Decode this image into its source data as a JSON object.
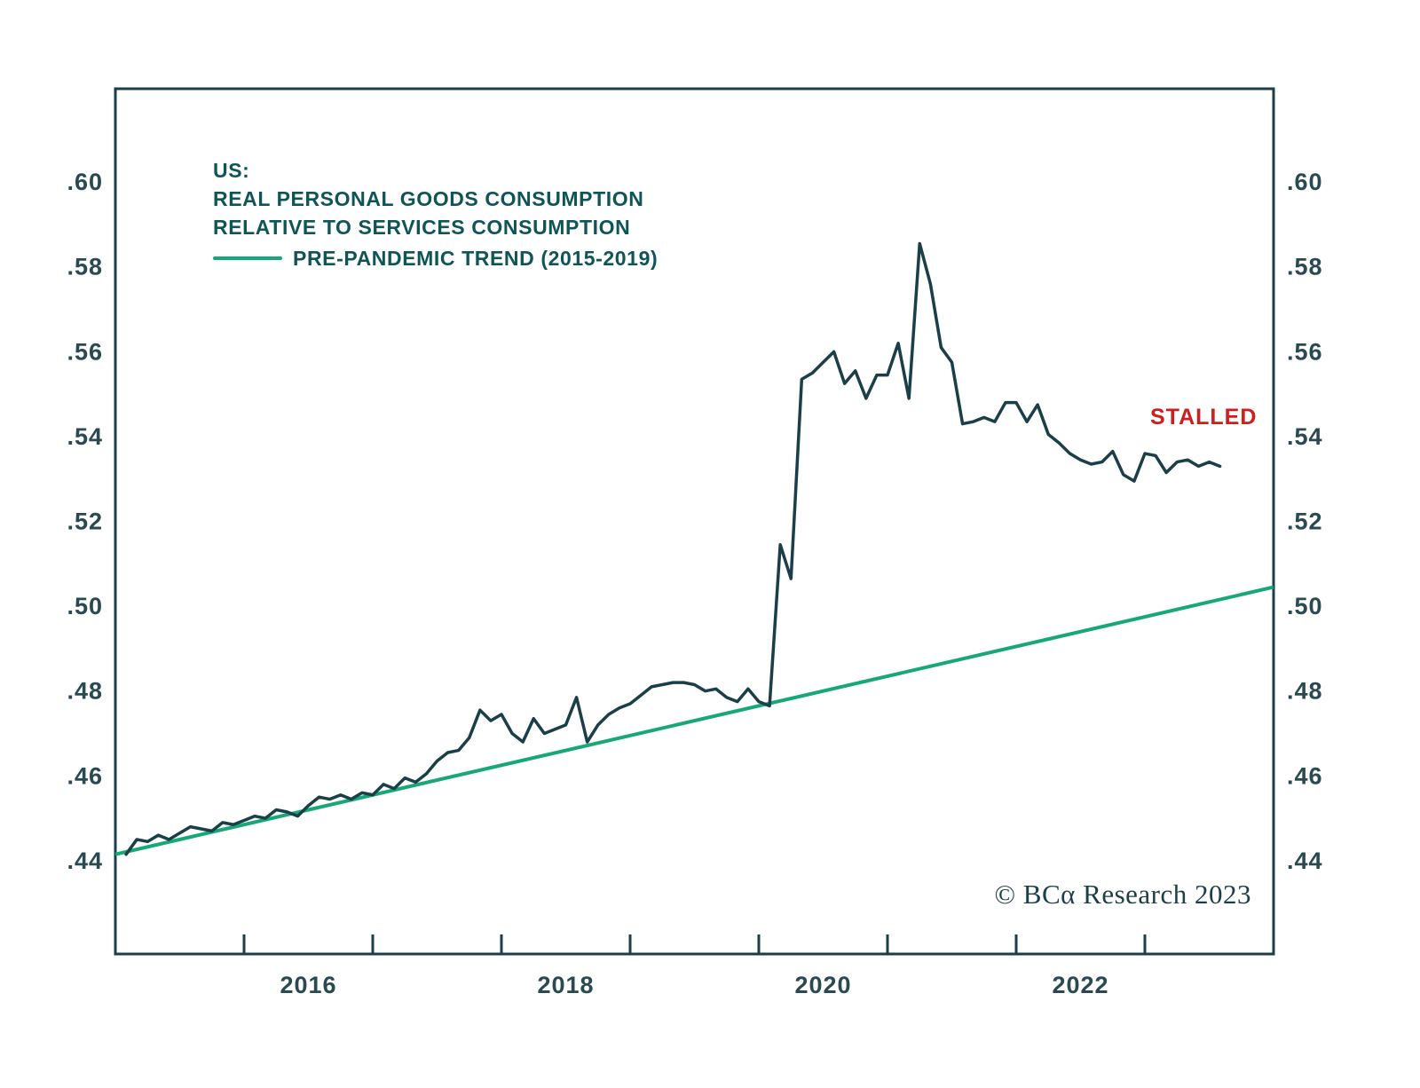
{
  "chart_data": {
    "type": "line",
    "title_lines": [
      "US:",
      "REAL PERSONAL GOODS CONSUMPTION",
      "RELATIVE TO SERVICES CONSUMPTION"
    ],
    "legend_label": "PRE-PANDEMIC TREND (2015-2019)",
    "annotations": {
      "stalled": "STALLED",
      "copyright": "© BCα Research 2023"
    },
    "colors": {
      "dark": "#1b3f49",
      "green": "#17a878",
      "red": "#d11d1d"
    },
    "x_domain": [
      2015.0,
      2024.0
    ],
    "y_domain": [
      0.418,
      0.622
    ],
    "y_ticks": [
      0.44,
      0.46,
      0.48,
      0.5,
      0.52,
      0.54,
      0.56,
      0.58,
      0.6
    ],
    "y_tick_labels": [
      ".44",
      ".46",
      ".48",
      ".50",
      ".52",
      ".54",
      ".56",
      ".58",
      ".60"
    ],
    "x_tick_positions": [
      2016,
      2017,
      2018,
      2019,
      2020,
      2021,
      2022,
      2023
    ],
    "x_labels": [
      {
        "t": 2016.5,
        "label": "2016"
      },
      {
        "t": 2018.5,
        "label": "2018"
      },
      {
        "t": 2020.5,
        "label": "2020"
      },
      {
        "t": 2022.5,
        "label": "2022"
      }
    ],
    "grid": false,
    "legend_position": "top-left",
    "series": [
      {
        "name": "US real personal goods consumption relative to services consumption",
        "color": "#1b3f49",
        "frequency": "monthly",
        "start": {
          "year": 2015,
          "month": 2
        },
        "monthly_values": [
          0.4415,
          0.445,
          0.4445,
          0.446,
          0.445,
          0.4465,
          0.448,
          0.4475,
          0.447,
          0.449,
          0.4485,
          0.4495,
          0.4505,
          0.45,
          0.452,
          0.4515,
          0.4505,
          0.453,
          0.455,
          0.4545,
          0.4555,
          0.4545,
          0.456,
          0.4555,
          0.458,
          0.457,
          0.4595,
          0.4585,
          0.4605,
          0.4635,
          0.4655,
          0.466,
          0.469,
          0.4755,
          0.473,
          0.4745,
          0.47,
          0.468,
          0.4735,
          0.47,
          0.471,
          0.472,
          0.4785,
          0.468,
          0.472,
          0.4745,
          0.476,
          0.477,
          0.479,
          0.481,
          0.4815,
          0.482,
          0.482,
          0.4815,
          0.48,
          0.4805,
          0.4785,
          0.4775,
          0.4805,
          0.4775,
          0.4765,
          0.5145,
          0.5065,
          0.5535,
          0.555,
          0.5575,
          0.56,
          0.5525,
          0.5555,
          0.549,
          0.5545,
          0.5545,
          0.562,
          0.549,
          0.5855,
          0.576,
          0.561,
          0.5575,
          0.543,
          0.5435,
          0.5445,
          0.5435,
          0.548,
          0.548,
          0.5435,
          0.5475,
          0.5405,
          0.5385,
          0.536,
          0.5345,
          0.5335,
          0.534,
          0.5365,
          0.531,
          0.5295,
          0.536,
          0.5355,
          0.5315,
          0.534,
          0.5345,
          0.533,
          0.534,
          0.533
        ]
      },
      {
        "name": "Pre-pandemic trend (2015-2019)",
        "color": "#17a878",
        "points": [
          [
            2015.0,
            0.4415
          ],
          [
            2024.0,
            0.5045
          ]
        ]
      }
    ]
  }
}
